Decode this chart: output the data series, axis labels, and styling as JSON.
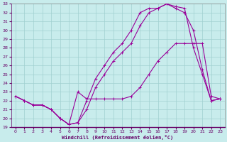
{
  "title": "",
  "xlabel": "Windchill (Refroidissement éolien,°C)",
  "ylabel": "",
  "xlim": [
    -0.5,
    23.5
  ],
  "ylim": [
    19,
    33
  ],
  "yticks": [
    19,
    20,
    21,
    22,
    23,
    24,
    25,
    26,
    27,
    28,
    29,
    30,
    31,
    32,
    33
  ],
  "xticks": [
    0,
    1,
    2,
    3,
    4,
    5,
    6,
    7,
    8,
    9,
    10,
    11,
    12,
    13,
    14,
    15,
    16,
    17,
    18,
    19,
    20,
    21,
    22,
    23
  ],
  "bg_color": "#c8ecec",
  "grid_color": "#a0d0d0",
  "line_color": "#990099",
  "line1_x": [
    0,
    1,
    2,
    3,
    4,
    5,
    6,
    7,
    8,
    9,
    10,
    11,
    12,
    13,
    14,
    15,
    16,
    17,
    18,
    19,
    20,
    21,
    22,
    23
  ],
  "line1_y": [
    22.5,
    22.0,
    21.5,
    21.5,
    21.0,
    20.0,
    19.3,
    19.5,
    21.0,
    23.5,
    25.0,
    26.5,
    27.5,
    28.5,
    30.5,
    32.0,
    32.5,
    33.0,
    32.7,
    32.5,
    28.0,
    25.0,
    22.0,
    22.2
  ],
  "line2_x": [
    0,
    1,
    2,
    3,
    4,
    5,
    6,
    7,
    8,
    9,
    10,
    11,
    12,
    13,
    14,
    15,
    16,
    17,
    18,
    19,
    20,
    21,
    22,
    23
  ],
  "line2_y": [
    22.5,
    22.0,
    21.5,
    21.5,
    21.0,
    20.0,
    19.3,
    19.5,
    22.0,
    24.5,
    26.0,
    27.5,
    28.5,
    30.0,
    32.0,
    32.5,
    32.5,
    33.0,
    32.5,
    32.0,
    30.0,
    25.5,
    22.0,
    22.2
  ],
  "line3_x": [
    0,
    1,
    2,
    3,
    4,
    5,
    6,
    7,
    8,
    9,
    10,
    11,
    12,
    13,
    14,
    15,
    16,
    17,
    18,
    19,
    20,
    21,
    22,
    23
  ],
  "line3_y": [
    22.5,
    22.0,
    21.5,
    21.5,
    21.0,
    20.0,
    19.3,
    23.0,
    22.2,
    22.2,
    22.2,
    22.2,
    22.2,
    22.5,
    23.5,
    25.0,
    26.5,
    27.5,
    28.5,
    28.5,
    28.5,
    28.5,
    22.5,
    22.2
  ]
}
